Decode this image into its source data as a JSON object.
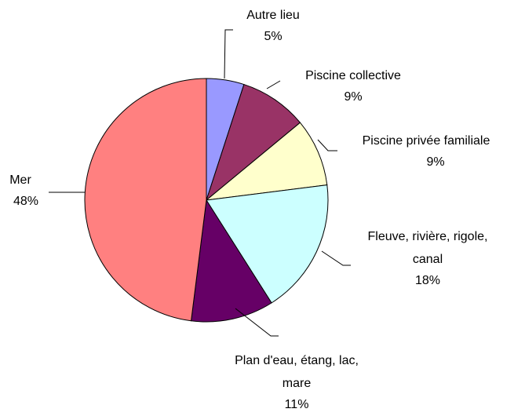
{
  "chart_data": {
    "type": "pie",
    "categories": [
      "Autre lieu",
      "Piscine collective",
      "Piscine privée familiale",
      "Fleuve, rivière, rigole, canal",
      "Plan d'eau, étang, lac, mare",
      "Mer"
    ],
    "values": [
      5,
      9,
      9,
      18,
      11,
      48
    ],
    "value_labels": [
      "5%",
      "9%",
      "9%",
      "18%",
      "11%",
      "48%"
    ],
    "colors": [
      "#9999ff",
      "#993366",
      "#ffffcc",
      "#ccffff",
      "#660066",
      "#ff8080"
    ]
  }
}
